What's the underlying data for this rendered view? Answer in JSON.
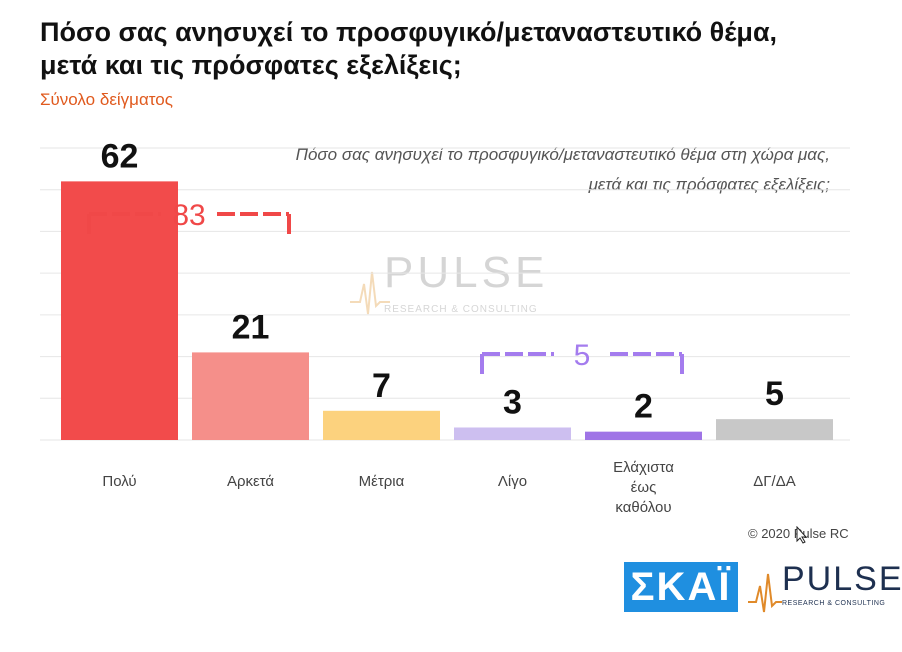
{
  "title": "Πόσο σας ανησυχεί το προσφυγικό/μεταναστευτικό θέμα, μετά και τις πρόσφατες εξελίξεις;",
  "subtitle": "Σύνολο δείγματος",
  "question_line1": "Πόσο σας ανησυχεί το προσφυγικό/μεταναστευτικό θέμα στη χώρα μας,",
  "question_line2": "μετά και τις πρόσφατες εξελίξεις;",
  "copyright": "© 2020 Pulse RC",
  "logos": {
    "skai": "ΣΚΑΪ",
    "pulse": "PULSE",
    "pulse_sub": "RESEARCH & CONSULTING"
  },
  "chart_data": {
    "type": "bar",
    "categories": [
      "Πολύ",
      "Αρκετά",
      "Μέτρια",
      "Λίγο",
      "Ελάχιστα έως καθόλου",
      "ΔΓ/ΔΑ"
    ],
    "category_lines": [
      [
        "Πολύ"
      ],
      [
        "Αρκετά"
      ],
      [
        "Μέτρια"
      ],
      [
        "Λίγο"
      ],
      [
        "Ελάχιστα",
        "έως",
        "καθόλου"
      ],
      [
        "ΔΓ/ΔΑ"
      ]
    ],
    "values": [
      62,
      21,
      7,
      3,
      2,
      5
    ],
    "colors": [
      "#f24b4b",
      "#f58f8a",
      "#fcd27e",
      "#cdbff0",
      "#9f74e6",
      "#c8c8c8"
    ],
    "ylim": [
      0,
      70
    ],
    "grid": true,
    "annotations": [
      {
        "label": "83",
        "from": 0,
        "to": 1,
        "color": "#f04848"
      },
      {
        "label": "5",
        "from": 3,
        "to": 4,
        "color": "#a47cee"
      }
    ]
  }
}
